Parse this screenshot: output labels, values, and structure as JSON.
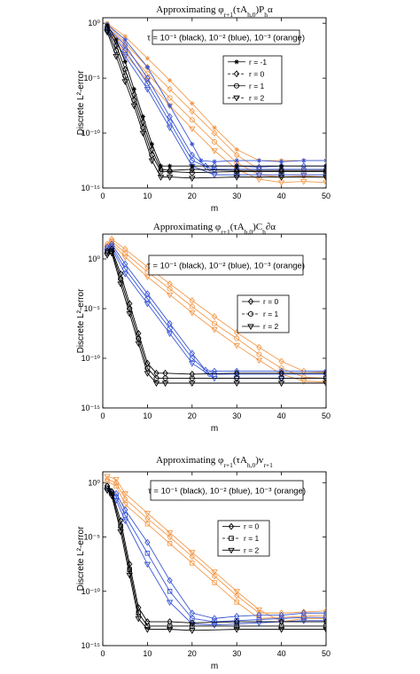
{
  "colors": {
    "black": "#000000",
    "blue": "#3a57d6",
    "orange": "#f39a4c"
  },
  "chart_data": [
    {
      "type": "line",
      "title": "Approximating φ_{r+1}(τA_{h,0})P_hα",
      "title_parts": {
        "pre": "Approximating φ",
        "sub": "r+1",
        "mid": "(τA",
        "sub2": "h,0",
        "post": ")P",
        "sub3": "h",
        "tail": "α"
      },
      "xlabel": "m",
      "ylabel": "Discrete L²-error",
      "xlim": [
        0,
        50
      ],
      "ylim_log10": [
        -15,
        0.5
      ],
      "yscale": "log",
      "xticks": [
        "0",
        "10",
        "20",
        "30",
        "40",
        "50"
      ],
      "yticks": [
        {
          "v": 0,
          "label": "10⁰"
        },
        {
          "v": -5,
          "label": "10⁻⁵"
        },
        {
          "v": -10,
          "label": "10⁻¹⁰"
        },
        {
          "v": -15,
          "label": "10⁻¹⁵"
        }
      ],
      "annotation": "τ = 10⁻¹ (black), 10⁻² (blue), 10⁻³ (orange)",
      "legend": [
        {
          "label": "r = -1",
          "marker": "star"
        },
        {
          "label": "r = 0",
          "marker": "diamond"
        },
        {
          "label": "r = 1",
          "marker": "circle"
        },
        {
          "label": "r = 2",
          "marker": "triangle"
        }
      ],
      "legend_position": "right-center",
      "series": [
        {
          "color": "black",
          "marker": "star",
          "x": [
            1,
            3,
            5,
            7,
            9,
            11,
            13,
            15,
            20,
            30,
            40,
            50
          ],
          "log10_y": [
            -0.2,
            -1.5,
            -3.5,
            -6,
            -8.5,
            -11,
            -13,
            -13,
            -13,
            -13,
            -13,
            -13
          ]
        },
        {
          "color": "black",
          "marker": "diamond",
          "x": [
            1,
            3,
            5,
            7,
            9,
            11,
            13,
            15,
            20,
            30,
            40,
            50
          ],
          "log10_y": [
            -0.4,
            -2,
            -4.2,
            -6.5,
            -9,
            -11.5,
            -13.3,
            -13.4,
            -13.3,
            -13.4,
            -13.4,
            -13.4
          ]
        },
        {
          "color": "black",
          "marker": "circle",
          "x": [
            1,
            3,
            5,
            7,
            9,
            11,
            13,
            15,
            20,
            30,
            40,
            50
          ],
          "log10_y": [
            -0.6,
            -2.5,
            -4.8,
            -7,
            -9.5,
            -12,
            -13.5,
            -13.5,
            -13.6,
            -13.5,
            -13.5,
            -13.5
          ]
        },
        {
          "color": "black",
          "marker": "triangle",
          "x": [
            1,
            3,
            5,
            7,
            9,
            11,
            13,
            15,
            20,
            30,
            40,
            50
          ],
          "log10_y": [
            -0.8,
            -3,
            -5.3,
            -7.5,
            -10,
            -12.5,
            -14,
            -14,
            -14.1,
            -14,
            -14,
            -14
          ]
        },
        {
          "color": "blue",
          "marker": "star",
          "x": [
            1,
            5,
            10,
            15,
            20,
            22,
            25,
            30,
            35,
            40,
            45,
            50
          ],
          "log10_y": [
            -0.1,
            -1.5,
            -4,
            -7.5,
            -11,
            -12.5,
            -12.6,
            -12.5,
            -12.5,
            -12.6,
            -12.5,
            -12.5
          ]
        },
        {
          "color": "blue",
          "marker": "diamond",
          "x": [
            1,
            5,
            10,
            15,
            20,
            23,
            25,
            30,
            35,
            40,
            45,
            50
          ],
          "log10_y": [
            -0.3,
            -2,
            -5,
            -8.5,
            -12,
            -13,
            -13,
            -13,
            -13.1,
            -13,
            -13,
            -13
          ]
        },
        {
          "color": "blue",
          "marker": "circle",
          "x": [
            1,
            5,
            10,
            15,
            20,
            24,
            25,
            30,
            35,
            40,
            45,
            50
          ],
          "log10_y": [
            -0.5,
            -2.5,
            -5.5,
            -9,
            -12.5,
            -13.2,
            -13.3,
            -13.3,
            -13.3,
            -13.3,
            -13.3,
            -13.3
          ]
        },
        {
          "color": "blue",
          "marker": "triangle",
          "x": [
            1,
            5,
            10,
            15,
            20,
            25,
            30,
            35,
            40,
            45,
            50
          ],
          "log10_y": [
            -0.7,
            -3,
            -6,
            -9.5,
            -13,
            -13.8,
            -13.8,
            -13.8,
            -13.8,
            -13.8,
            -13.8
          ]
        },
        {
          "color": "orange",
          "marker": "star",
          "x": [
            1,
            5,
            10,
            15,
            20,
            25,
            30,
            35,
            40,
            45,
            50
          ],
          "log10_y": [
            0,
            -1.2,
            -3.2,
            -5.2,
            -7.3,
            -9.5,
            -11.5,
            -12.5,
            -12.5,
            -12.5,
            -12.5
          ]
        },
        {
          "color": "orange",
          "marker": "diamond",
          "x": [
            1,
            5,
            10,
            15,
            20,
            25,
            30,
            35,
            40,
            45,
            50
          ],
          "log10_y": [
            -0.1,
            -1.8,
            -4,
            -6,
            -8,
            -10,
            -12,
            -13.3,
            -13.3,
            -13.3,
            -13.3
          ]
        },
        {
          "color": "orange",
          "marker": "circle",
          "x": [
            1,
            5,
            10,
            15,
            20,
            25,
            30,
            35,
            40,
            45,
            50
          ],
          "log10_y": [
            -0.3,
            -2.3,
            -4.6,
            -6.8,
            -8.8,
            -10.8,
            -12.7,
            -13.8,
            -14,
            -13.9,
            -14
          ]
        },
        {
          "color": "orange",
          "marker": "triangle",
          "x": [
            1,
            5,
            10,
            15,
            20,
            25,
            30,
            35,
            40,
            45,
            50
          ],
          "log10_y": [
            -0.5,
            -2.8,
            -5.2,
            -7.5,
            -9.6,
            -11.6,
            -13.3,
            -14.2,
            -14.5,
            -14.4,
            -14.5
          ]
        }
      ]
    },
    {
      "type": "line",
      "title": "Approximating φ_{r+1}(τA_{h,0})C_h∂α",
      "title_parts": {
        "pre": "Approximating φ",
        "sub": "r+1",
        "mid": "(τA",
        "sub2": "h,0",
        "post": ")C",
        "sub3": "h",
        "tail": "∂α"
      },
      "xlabel": "m",
      "ylabel": "Discrete L²-error",
      "xlim": [
        0,
        50
      ],
      "ylim_log10": [
        -15,
        2.5
      ],
      "yscale": "log",
      "xticks": [
        "0",
        "10",
        "20",
        "30",
        "40",
        "50"
      ],
      "yticks": [
        {
          "v": 0,
          "label": "10⁰"
        },
        {
          "v": -5,
          "label": "10⁻⁵"
        },
        {
          "v": -10,
          "label": "10⁻¹⁰"
        },
        {
          "v": -15,
          "label": "10⁻¹⁵"
        }
      ],
      "annotation": "τ = 10⁻¹ (black), 10⁻² (blue), 10⁻³ (orange)",
      "legend": [
        {
          "label": "r = 0",
          "marker": "diamond"
        },
        {
          "label": "r = 1",
          "marker": "circle"
        },
        {
          "label": "r = 2",
          "marker": "triangle"
        }
      ],
      "legend_position": "right-center",
      "series": [
        {
          "color": "black",
          "marker": "diamond",
          "x": [
            1,
            2,
            4,
            6,
            8,
            10,
            12,
            14,
            20,
            30,
            40,
            50
          ],
          "log10_y": [
            0.8,
            1,
            -1.5,
            -4.5,
            -7.5,
            -10.5,
            -11.5,
            -11.5,
            -11.6,
            -11.5,
            -11.5,
            -11.5
          ]
        },
        {
          "color": "black",
          "marker": "circle",
          "x": [
            1,
            2,
            4,
            6,
            8,
            10,
            12,
            14,
            20,
            30,
            40,
            50
          ],
          "log10_y": [
            0.6,
            0.8,
            -2,
            -5,
            -8,
            -11,
            -12,
            -12,
            -12,
            -12,
            -12,
            -12
          ]
        },
        {
          "color": "black",
          "marker": "triangle",
          "x": [
            1,
            2,
            4,
            6,
            8,
            10,
            12,
            14,
            20,
            30,
            40,
            50
          ],
          "log10_y": [
            0.4,
            0.6,
            -2.5,
            -5.5,
            -8.5,
            -11.5,
            -12.5,
            -12.5,
            -12.5,
            -12.5,
            -12.5,
            -12.5
          ]
        },
        {
          "color": "blue",
          "marker": "diamond",
          "x": [
            1,
            2,
            5,
            10,
            15,
            20,
            23,
            25,
            30,
            40,
            50
          ],
          "log10_y": [
            1.2,
            1.5,
            -0.5,
            -3.5,
            -6.5,
            -9.5,
            -11.2,
            -11.3,
            -11.3,
            -11.3,
            -11.3
          ]
        },
        {
          "color": "blue",
          "marker": "circle",
          "x": [
            1,
            2,
            5,
            10,
            15,
            20,
            24,
            25,
            30,
            40,
            50
          ],
          "log10_y": [
            1,
            1.3,
            -1,
            -4,
            -7,
            -10,
            -11.6,
            -11.6,
            -11.6,
            -11.6,
            -11.6
          ]
        },
        {
          "color": "blue",
          "marker": "triangle",
          "x": [
            1,
            2,
            5,
            10,
            15,
            20,
            25,
            30,
            40,
            50
          ],
          "log10_y": [
            0.8,
            1.1,
            -1.5,
            -4.5,
            -7.5,
            -10.5,
            -12,
            -12,
            -12,
            -12
          ]
        },
        {
          "color": "orange",
          "marker": "diamond",
          "x": [
            1,
            2,
            5,
            10,
            15,
            20,
            25,
            30,
            35,
            40,
            45,
            50
          ],
          "log10_y": [
            1.5,
            2,
            1,
            -0.8,
            -2.5,
            -4.2,
            -5.8,
            -7.4,
            -8.9,
            -10.3,
            -11.3,
            -11.4
          ]
        },
        {
          "color": "orange",
          "marker": "circle",
          "x": [
            1,
            2,
            5,
            10,
            15,
            20,
            25,
            30,
            35,
            40,
            45,
            50
          ],
          "log10_y": [
            1.3,
            1.8,
            0.6,
            -1.3,
            -3,
            -4.8,
            -6.5,
            -8,
            -9.6,
            -11,
            -11.9,
            -12
          ]
        },
        {
          "color": "orange",
          "marker": "triangle",
          "x": [
            1,
            2,
            5,
            10,
            15,
            20,
            25,
            30,
            35,
            40,
            45,
            50
          ],
          "log10_y": [
            1.1,
            1.6,
            0.2,
            -1.8,
            -3.6,
            -5.4,
            -7.1,
            -8.7,
            -10.2,
            -11.6,
            -12.3,
            -12.4
          ]
        }
      ]
    },
    {
      "type": "line",
      "title": "Approximating φ_{r+1}(τA_{h,0})v_{r+1}",
      "title_parts": {
        "pre": "Approximating φ",
        "sub": "r+1",
        "mid": "(τA",
        "sub2": "h,0",
        "post": ")v",
        "sub3": "r+1",
        "tail": ""
      },
      "xlabel": "m",
      "ylabel": "Discrete L²-error",
      "xlim": [
        0,
        50
      ],
      "ylim_log10": [
        -15,
        1
      ],
      "yscale": "log",
      "xticks": [
        "0",
        "10",
        "20",
        "30",
        "40",
        "50"
      ],
      "yticks": [
        {
          "v": 0,
          "label": "10⁰"
        },
        {
          "v": -5,
          "label": "10⁻⁵"
        },
        {
          "v": -10,
          "label": "10⁻¹⁰"
        },
        {
          "v": -15,
          "label": "10⁻¹⁵"
        }
      ],
      "annotation": "τ = 10⁻¹ (black), 10⁻² (blue), 10⁻³ (orange)",
      "legend": [
        {
          "label": "r = 0",
          "marker": "diamond"
        },
        {
          "label": "r = 1",
          "marker": "square"
        },
        {
          "label": "r = 2",
          "marker": "triangle"
        }
      ],
      "legend_position": "right-center",
      "series": [
        {
          "color": "black",
          "marker": "diamond",
          "x": [
            1,
            2,
            4,
            6,
            8,
            10,
            15,
            20,
            30,
            40,
            50
          ],
          "log10_y": [
            -0.3,
            -0.8,
            -3.5,
            -7.5,
            -11.5,
            -12.8,
            -12.8,
            -12.9,
            -12.8,
            -12.8,
            -12.8
          ]
        },
        {
          "color": "black",
          "marker": "square",
          "x": [
            1,
            2,
            4,
            6,
            8,
            10,
            15,
            20,
            30,
            40,
            50
          ],
          "log10_y": [
            -0.5,
            -1,
            -4,
            -8,
            -12,
            -13.2,
            -13.2,
            -13.2,
            -13.2,
            -13.2,
            -13.2
          ]
        },
        {
          "color": "black",
          "marker": "triangle",
          "x": [
            1,
            2,
            4,
            6,
            8,
            10,
            15,
            20,
            30,
            40,
            50
          ],
          "log10_y": [
            -0.7,
            -1.2,
            -4.5,
            -8.5,
            -12.5,
            -13.5,
            -13.5,
            -13.6,
            -13.5,
            -13.5,
            -13.5
          ]
        },
        {
          "color": "blue",
          "marker": "diamond",
          "x": [
            1,
            3,
            5,
            10,
            15,
            20,
            25,
            30,
            35,
            40,
            45,
            50
          ],
          "log10_y": [
            -0.3,
            -1,
            -2.5,
            -5.5,
            -9,
            -12,
            -12.5,
            -12.3,
            -12.2,
            -12.2,
            -12,
            -12
          ]
        },
        {
          "color": "blue",
          "marker": "square",
          "x": [
            1,
            3,
            5,
            10,
            15,
            20,
            25,
            30,
            35,
            40,
            45,
            50
          ],
          "log10_y": [
            -0.5,
            -1.3,
            -3,
            -6.5,
            -10,
            -12.5,
            -12.8,
            -12.7,
            -12.6,
            -12.5,
            -12.4,
            -12.4
          ]
        },
        {
          "color": "blue",
          "marker": "triangle",
          "x": [
            1,
            3,
            5,
            10,
            15,
            20,
            25,
            30,
            35,
            40,
            45,
            50
          ],
          "log10_y": [
            -0.7,
            -1.6,
            -3.5,
            -7.5,
            -11,
            -13,
            -13.1,
            -13,
            -12.9,
            -12.8,
            -12.7,
            -12.7
          ]
        },
        {
          "color": "orange",
          "marker": "diamond",
          "x": [
            1,
            3,
            5,
            10,
            15,
            20,
            25,
            30,
            35,
            40,
            45,
            50
          ],
          "log10_y": [
            0.3,
            0,
            -1.5,
            -3.3,
            -5,
            -6.8,
            -8.6,
            -10.4,
            -12,
            -12,
            -11.9,
            -11.8
          ]
        },
        {
          "color": "orange",
          "marker": "square",
          "x": [
            1,
            3,
            5,
            10,
            15,
            20,
            25,
            30,
            35,
            40,
            45,
            50
          ],
          "log10_y": [
            0.1,
            -0.3,
            -2,
            -3.8,
            -5.6,
            -7.4,
            -9.2,
            -11,
            -12.5,
            -12.4,
            -12.3,
            -12.2
          ]
        },
        {
          "color": "orange",
          "marker": "triangle",
          "x": [
            1,
            3,
            5,
            10,
            15,
            20,
            25,
            30,
            35,
            40,
            45,
            50
          ],
          "log10_y": [
            0.6,
            0.3,
            -1,
            -2.8,
            -4.6,
            -6.4,
            -8.2,
            -10,
            -11.7,
            -12.8,
            -12.5,
            -12.5
          ]
        }
      ]
    }
  ]
}
